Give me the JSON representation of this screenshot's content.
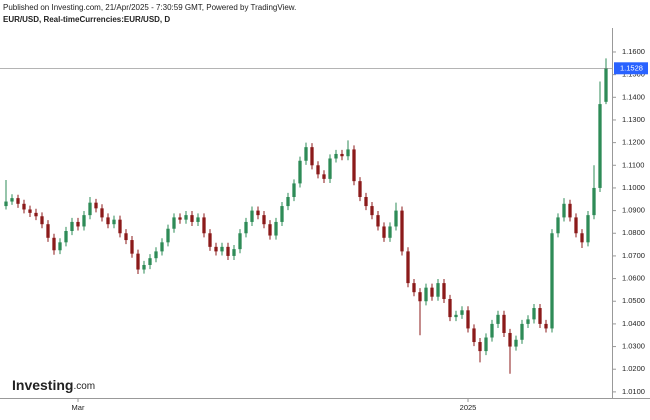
{
  "header": {
    "published": "Published on Investing.com, 21/Apr/2025 - 7:30:59 GMT, Powered by TradingView.",
    "symbol": "EUR/USD, Real-timeCurrencies:EUR/USD, D"
  },
  "logo": {
    "name": "Investing",
    "suffix": ".com"
  },
  "chart_data": {
    "type": "candlestick",
    "up_color": "#2e8b57",
    "down_color": "#8b1a1a",
    "xlim": [
      -1,
      101
    ],
    "xticks": [
      {
        "value": 12,
        "label": "Mar"
      },
      {
        "value": 77,
        "label": "2025"
      }
    ],
    "ylim": [
      1.0073,
      1.1697
    ],
    "yticks": [
      {
        "value": 1.01,
        "label": "1.0100"
      },
      {
        "value": 1.02,
        "label": "1.0200"
      },
      {
        "value": 1.03,
        "label": "1.0300"
      },
      {
        "value": 1.04,
        "label": "1.0400"
      },
      {
        "value": 1.05,
        "label": "1.0500"
      },
      {
        "value": 1.06,
        "label": "1.0600"
      },
      {
        "value": 1.07,
        "label": "1.0700"
      },
      {
        "value": 1.08,
        "label": "1.0800"
      },
      {
        "value": 1.09,
        "label": "1.0900"
      },
      {
        "value": 1.1,
        "label": "1.1000"
      },
      {
        "value": 1.11,
        "label": "1.1100"
      },
      {
        "value": 1.12,
        "label": "1.1200"
      },
      {
        "value": 1.13,
        "label": "1.1300"
      },
      {
        "value": 1.14,
        "label": "1.1400"
      },
      {
        "value": 1.15,
        "label": "1.1500"
      },
      {
        "value": 1.16,
        "label": "1.1600"
      }
    ],
    "last_price": {
      "value": 1.1528,
      "label": "1.1528",
      "color": "#2962ff"
    },
    "ohlc": [
      [
        1.092,
        1.1035,
        1.0905,
        1.094
      ],
      [
        1.094,
        1.0972,
        1.0925,
        1.0955
      ],
      [
        1.0955,
        1.097,
        1.0912,
        1.093
      ],
      [
        1.093,
        1.0948,
        1.0888,
        1.0905
      ],
      [
        1.0905,
        1.0922,
        1.0872,
        1.089
      ],
      [
        1.089,
        1.0908,
        1.0858,
        1.0875
      ],
      [
        1.0875,
        1.0892,
        1.0822,
        1.084
      ],
      [
        1.084,
        1.0858,
        1.0762,
        1.078
      ],
      [
        1.078,
        1.0798,
        1.0705,
        1.0725
      ],
      [
        1.0725,
        1.0778,
        1.0708,
        1.076
      ],
      [
        1.076,
        1.0828,
        1.0742,
        1.081
      ],
      [
        1.081,
        1.0868,
        1.0792,
        1.085
      ],
      [
        1.085,
        1.0868,
        1.0812,
        1.083
      ],
      [
        1.083,
        1.0898,
        1.0812,
        1.088
      ],
      [
        1.088,
        1.096,
        1.0862,
        1.0935
      ],
      [
        1.0935,
        1.0952,
        1.0892,
        1.091
      ],
      [
        1.091,
        1.0928,
        1.0852,
        1.087
      ],
      [
        1.087,
        1.0888,
        1.0822,
        1.084
      ],
      [
        1.084,
        1.0878,
        1.0822,
        1.086
      ],
      [
        1.086,
        1.0878,
        1.0782,
        1.08
      ],
      [
        1.08,
        1.0818,
        1.0752,
        1.077
      ],
      [
        1.077,
        1.0788,
        1.0692,
        1.071
      ],
      [
        1.071,
        1.0728,
        1.062,
        1.064
      ],
      [
        1.064,
        1.0678,
        1.0622,
        1.066
      ],
      [
        1.066,
        1.0708,
        1.0642,
        1.069
      ],
      [
        1.069,
        1.0738,
        1.0672,
        1.072
      ],
      [
        1.072,
        1.0778,
        1.0702,
        1.076
      ],
      [
        1.076,
        1.0838,
        1.0742,
        1.082
      ],
      [
        1.082,
        1.0888,
        1.0802,
        1.087
      ],
      [
        1.087,
        1.0888,
        1.0842,
        1.086
      ],
      [
        1.086,
        1.0898,
        1.0842,
        1.088
      ],
      [
        1.088,
        1.0898,
        1.0832,
        1.085
      ],
      [
        1.085,
        1.0888,
        1.0832,
        1.087
      ],
      [
        1.087,
        1.0888,
        1.0782,
        1.08
      ],
      [
        1.08,
        1.0818,
        1.0722,
        1.074
      ],
      [
        1.074,
        1.0758,
        1.0702,
        1.072
      ],
      [
        1.072,
        1.0758,
        1.0702,
        1.074
      ],
      [
        1.074,
        1.0758,
        1.0682,
        1.07
      ],
      [
        1.07,
        1.0748,
        1.0682,
        1.073
      ],
      [
        1.073,
        1.0818,
        1.0712,
        1.08
      ],
      [
        1.08,
        1.0868,
        1.0782,
        1.085
      ],
      [
        1.085,
        1.0918,
        1.0832,
        1.09
      ],
      [
        1.09,
        1.0918,
        1.0862,
        1.088
      ],
      [
        1.088,
        1.0898,
        1.0822,
        1.084
      ],
      [
        1.084,
        1.0858,
        1.0772,
        1.079
      ],
      [
        1.079,
        1.0868,
        1.0772,
        1.085
      ],
      [
        1.085,
        1.0938,
        1.0832,
        1.092
      ],
      [
        1.092,
        1.0978,
        1.0902,
        1.096
      ],
      [
        1.096,
        1.1038,
        1.0942,
        1.102
      ],
      [
        1.102,
        1.1138,
        1.1002,
        1.112
      ],
      [
        1.112,
        1.12,
        1.1102,
        1.118
      ],
      [
        1.118,
        1.1198,
        1.1082,
        1.11
      ],
      [
        1.11,
        1.1118,
        1.1042,
        1.106
      ],
      [
        1.106,
        1.1078,
        1.1022,
        1.104
      ],
      [
        1.104,
        1.1148,
        1.1022,
        1.113
      ],
      [
        1.113,
        1.1168,
        1.1112,
        1.115
      ],
      [
        1.115,
        1.1168,
        1.1122,
        1.114
      ],
      [
        1.114,
        1.121,
        1.1122,
        1.117
      ],
      [
        1.117,
        1.1188,
        1.1012,
        1.103
      ],
      [
        1.103,
        1.1048,
        1.0942,
        1.096
      ],
      [
        1.096,
        1.0978,
        1.0902,
        1.092
      ],
      [
        1.092,
        1.0938,
        1.0862,
        1.088
      ],
      [
        1.088,
        1.0898,
        1.0812,
        1.083
      ],
      [
        1.083,
        1.0848,
        1.0762,
        1.078
      ],
      [
        1.078,
        1.0848,
        1.0762,
        1.083
      ],
      [
        1.083,
        1.0935,
        1.0812,
        1.09
      ],
      [
        1.09,
        1.0918,
        1.0702,
        1.072
      ],
      [
        1.072,
        1.0738,
        1.0562,
        1.058
      ],
      [
        1.058,
        1.0598,
        1.0522,
        1.054
      ],
      [
        1.054,
        1.0558,
        1.035,
        1.05
      ],
      [
        1.05,
        1.0578,
        1.0482,
        1.056
      ],
      [
        1.056,
        1.0578,
        1.0502,
        1.052
      ],
      [
        1.052,
        1.0598,
        1.0502,
        1.058
      ],
      [
        1.058,
        1.0598,
        1.0492,
        1.051
      ],
      [
        1.051,
        1.0528,
        1.0412,
        1.043
      ],
      [
        1.043,
        1.0458,
        1.0412,
        1.044
      ],
      [
        1.044,
        1.0478,
        1.0422,
        1.046
      ],
      [
        1.046,
        1.0478,
        1.0362,
        1.038
      ],
      [
        1.038,
        1.0398,
        1.0302,
        1.032
      ],
      [
        1.032,
        1.0338,
        1.023,
        1.028
      ],
      [
        1.028,
        1.0358,
        1.0262,
        1.034
      ],
      [
        1.034,
        1.0418,
        1.0322,
        1.04
      ],
      [
        1.04,
        1.0458,
        1.0382,
        1.044
      ],
      [
        1.044,
        1.0458,
        1.0342,
        1.036
      ],
      [
        1.036,
        1.0378,
        1.018,
        1.03
      ],
      [
        1.03,
        1.0348,
        1.0282,
        1.033
      ],
      [
        1.033,
        1.0418,
        1.0312,
        1.04
      ],
      [
        1.04,
        1.0438,
        1.0382,
        1.042
      ],
      [
        1.042,
        1.0488,
        1.0402,
        1.047
      ],
      [
        1.047,
        1.0488,
        1.0382,
        1.04
      ],
      [
        1.04,
        1.0418,
        1.0362,
        1.038
      ],
      [
        1.038,
        1.0818,
        1.0362,
        1.08
      ],
      [
        1.08,
        1.0888,
        1.0782,
        1.087
      ],
      [
        1.087,
        1.0955,
        1.0852,
        1.093
      ],
      [
        1.093,
        1.0948,
        1.0852,
        1.087
      ],
      [
        1.087,
        1.0888,
        1.0782,
        1.08
      ],
      [
        1.08,
        1.0818,
        1.0735,
        1.076
      ],
      [
        1.076,
        1.0898,
        1.0742,
        1.088
      ],
      [
        1.088,
        1.11,
        1.0862,
        1.1
      ],
      [
        1.1,
        1.147,
        1.0982,
        1.137
      ],
      [
        1.138,
        1.1572,
        1.137,
        1.1528
      ]
    ]
  }
}
